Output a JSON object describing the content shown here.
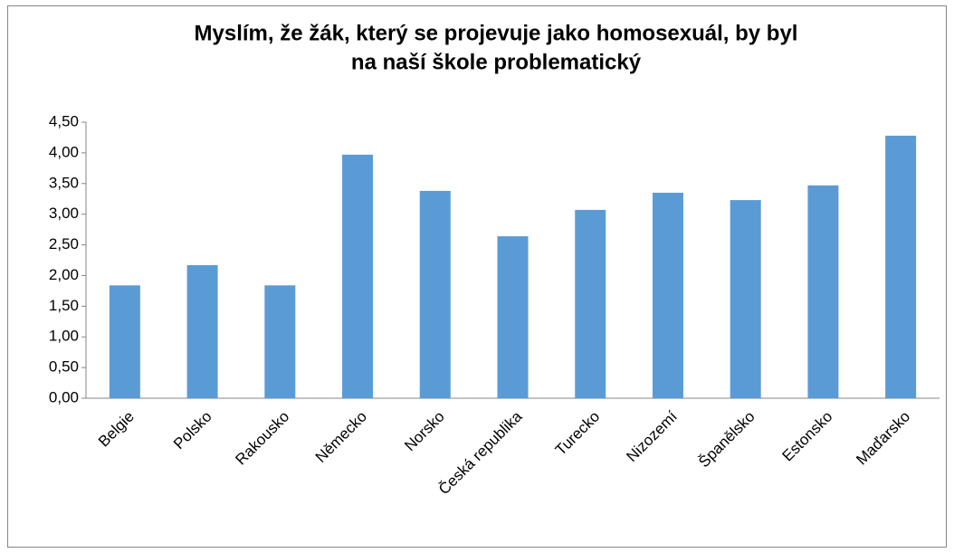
{
  "chart_data": {
    "type": "bar",
    "title": [
      "Myslím,  že žák, který se projevuje jako homosexuál, by byl",
      "na naší škole problematický"
    ],
    "categories": [
      "Belgie",
      "Polsko",
      "Rakousko",
      "Německo",
      "Norsko",
      "Česká republika",
      "Turecko",
      "Nizozemí",
      "Španělsko",
      "Estonsko",
      "Maďarsko"
    ],
    "values": [
      1.84,
      2.17,
      1.84,
      3.97,
      3.38,
      2.64,
      3.07,
      3.35,
      3.23,
      3.47,
      4.28
    ],
    "color": "#5b9bd5",
    "ylim": [
      0,
      4.5
    ],
    "yticks": [
      {
        "value": 0,
        "label": "0,00"
      },
      {
        "value": 0.5,
        "label": "0,50"
      },
      {
        "value": 1,
        "label": "1,00"
      },
      {
        "value": 1.5,
        "label": "1,50"
      },
      {
        "value": 2,
        "label": "2,00"
      },
      {
        "value": 2.5,
        "label": "2,50"
      },
      {
        "value": 3,
        "label": "3,00"
      },
      {
        "value": 3.5,
        "label": "3,50"
      },
      {
        "value": 4,
        "label": "4,00"
      },
      {
        "value": 4.5,
        "label": "4,50"
      }
    ],
    "grid": false
  }
}
